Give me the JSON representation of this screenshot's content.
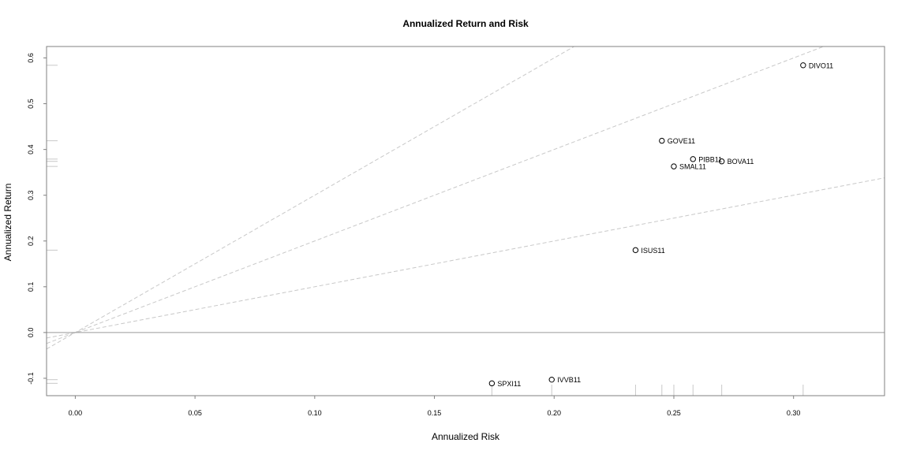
{
  "chart_data": {
    "type": "scatter",
    "title": "Annualized Return and Risk",
    "xlabel": "Annualized Risk",
    "ylabel": "Annualized Return",
    "xlim": [
      -0.012,
      0.338
    ],
    "ylim": [
      -0.138,
      0.625
    ],
    "x_ticks": [
      0.0,
      0.05,
      0.1,
      0.15,
      0.2,
      0.25,
      0.3
    ],
    "x_tick_labels": [
      "0.00",
      "0.05",
      "0.10",
      "0.15",
      "0.20",
      "0.25",
      "0.30"
    ],
    "y_ticks": [
      -0.1,
      0.0,
      0.1,
      0.2,
      0.3,
      0.4,
      0.5,
      0.6
    ],
    "y_tick_labels": [
      "-0.1",
      "0.0",
      "0.1",
      "0.2",
      "0.3",
      "0.4",
      "0.5",
      "0.6"
    ],
    "points": [
      {
        "label": "DIVO11",
        "x": 0.304,
        "y": 0.584
      },
      {
        "label": "GOVE11",
        "x": 0.245,
        "y": 0.419
      },
      {
        "label": "PIBB11",
        "x": 0.258,
        "y": 0.379
      },
      {
        "label": "BOVA11",
        "x": 0.27,
        "y": 0.374
      },
      {
        "label": "SMAL11",
        "x": 0.25,
        "y": 0.363
      },
      {
        "label": "ISUS11",
        "x": 0.234,
        "y": 0.18
      },
      {
        "label": "IVVB11",
        "x": 0.199,
        "y": -0.103
      },
      {
        "label": "SPXI11",
        "x": 0.174,
        "y": -0.111
      }
    ],
    "reference_lines": [
      {
        "type": "sharpe",
        "slope": 3.0
      },
      {
        "type": "sharpe",
        "slope": 2.0
      },
      {
        "type": "sharpe",
        "slope": 1.0
      }
    ],
    "zero_line": true,
    "rug": true
  }
}
